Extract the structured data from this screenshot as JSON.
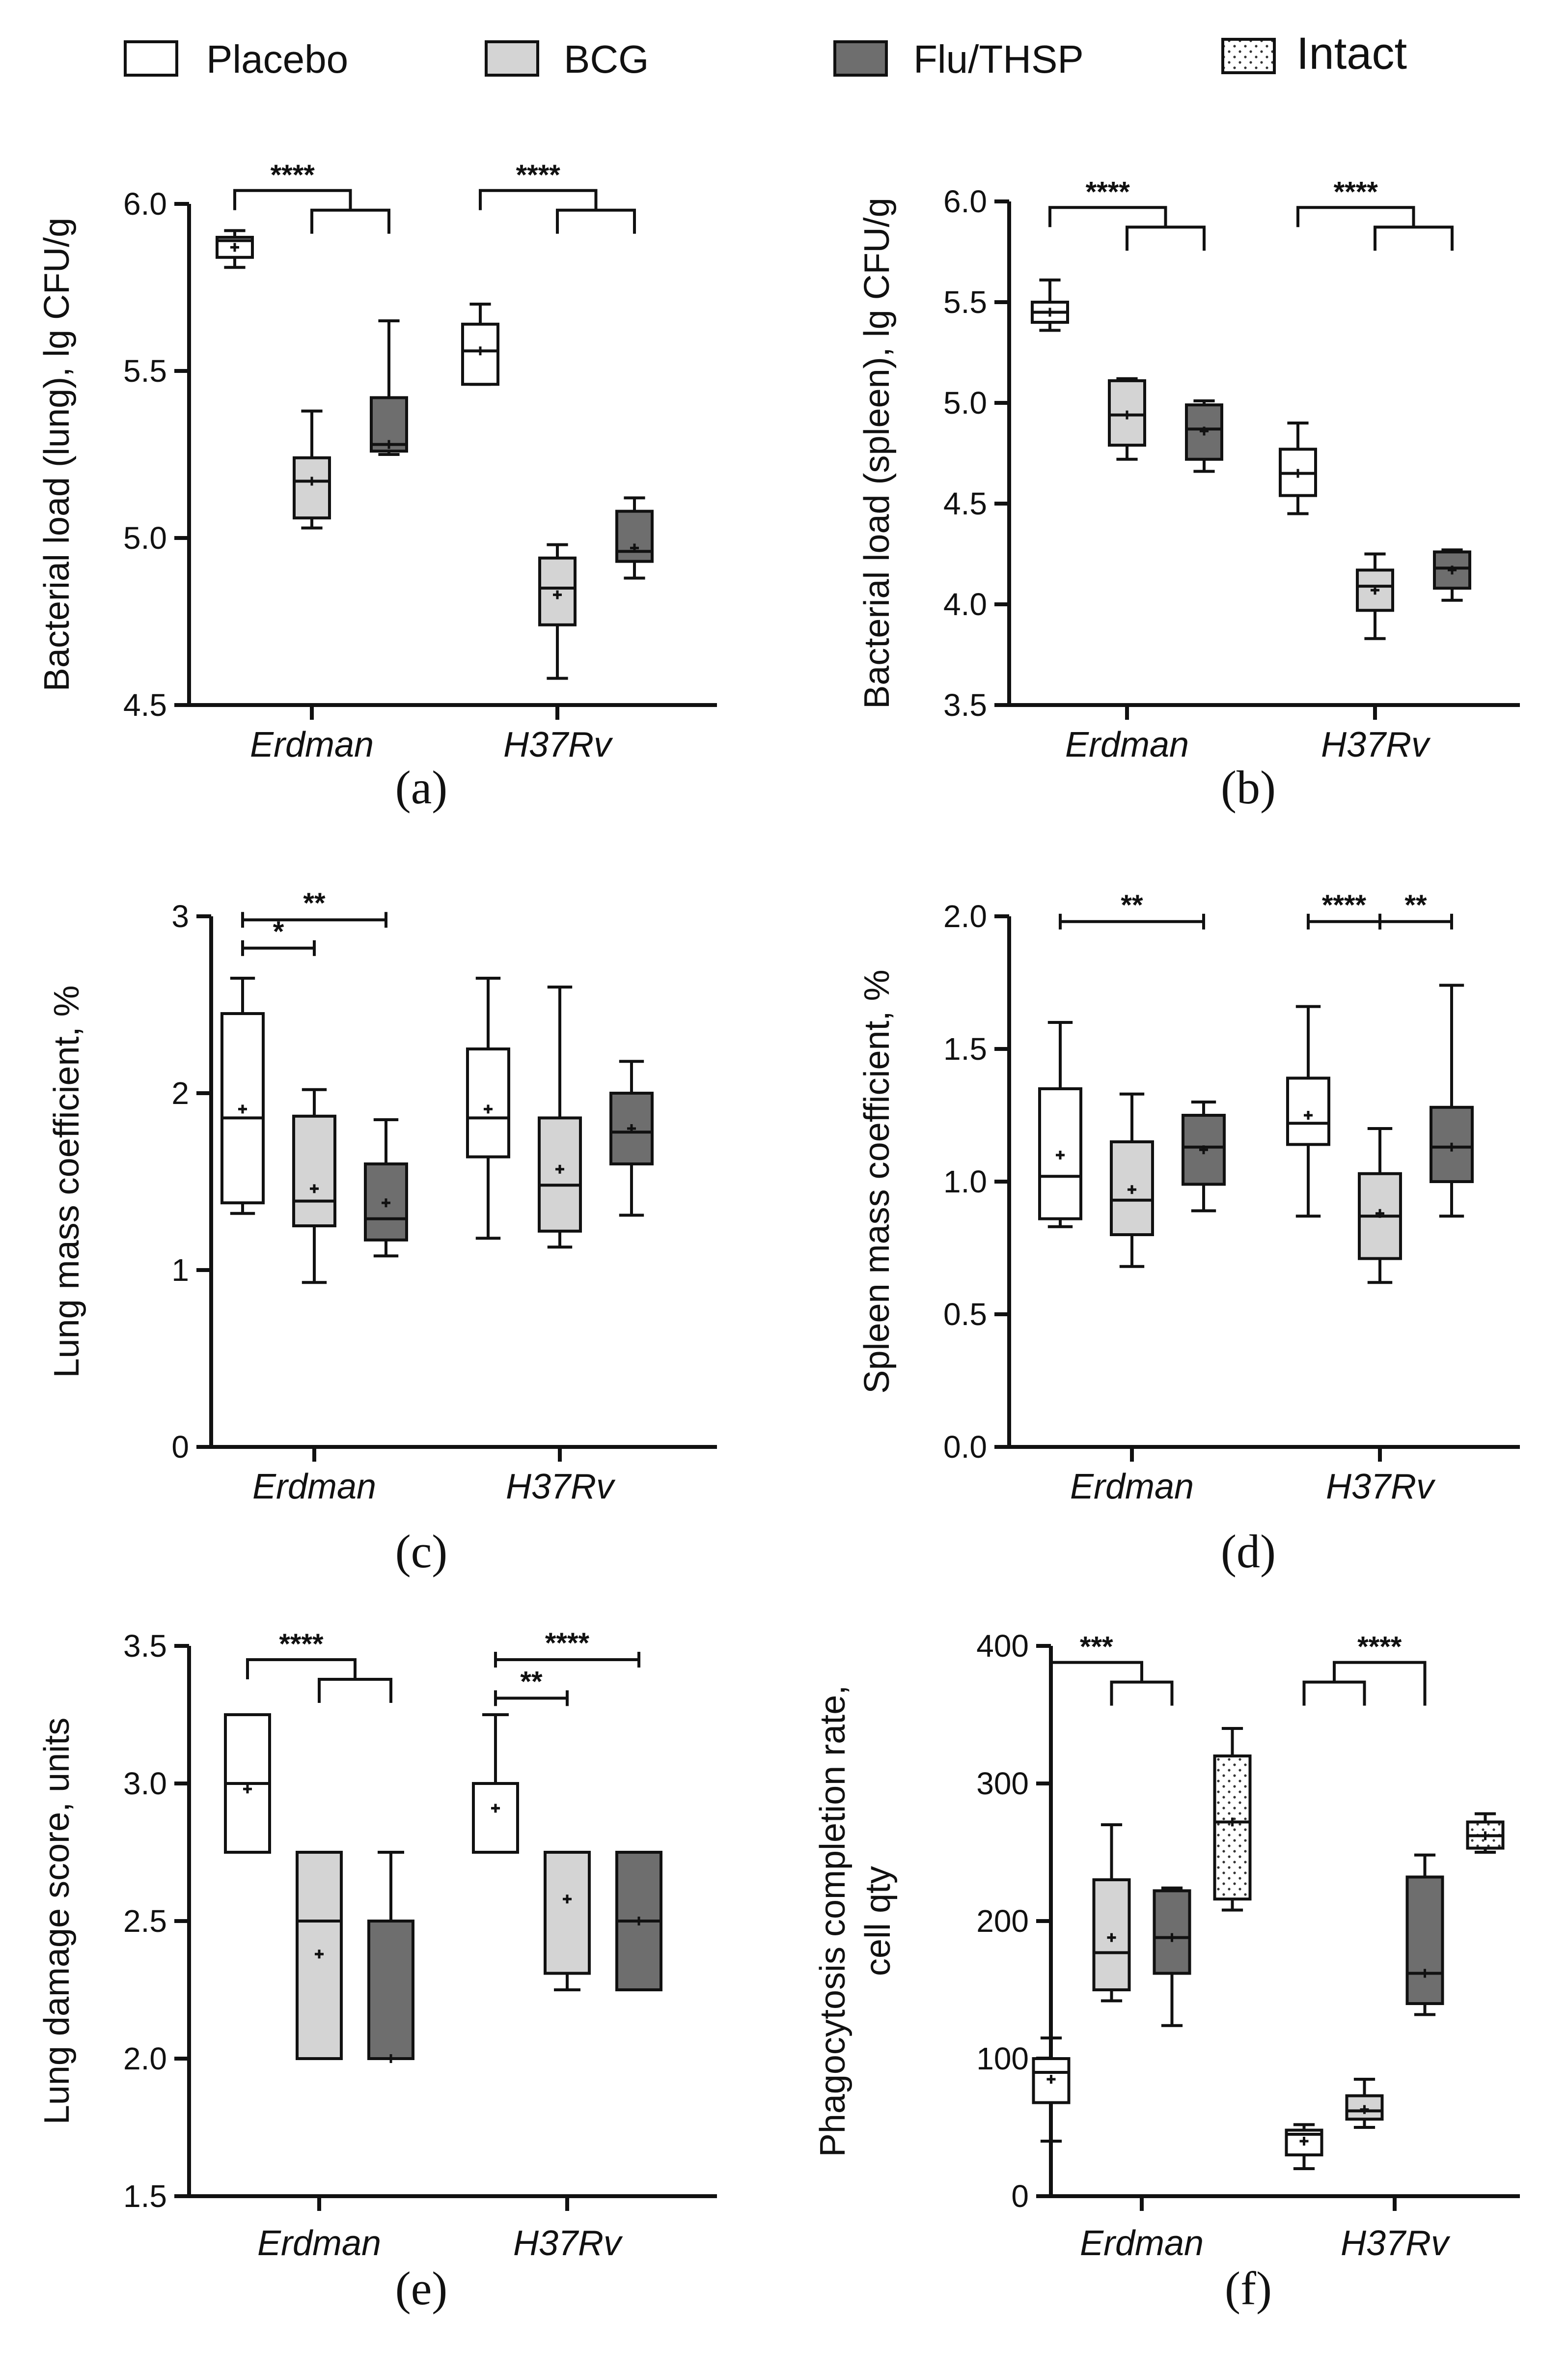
{
  "legend": {
    "items": [
      {
        "label": "Placebo",
        "color": "#ffffff",
        "pattern": "none"
      },
      {
        "label": "BCG",
        "color": "#d4d4d4",
        "pattern": "none"
      },
      {
        "label": "Flu/THSP",
        "color": "#6e6e6e",
        "pattern": "none"
      },
      {
        "label": "Intact",
        "color": "#ffffff",
        "pattern": "dots"
      }
    ]
  },
  "chart_data": [
    {
      "type": "box",
      "panel_label": "(a)",
      "ylabel": "Bacterial load (lung), lg CFU/g",
      "ylim": [
        4.5,
        6.0
      ],
      "yticks": [
        4.5,
        5.0,
        5.5,
        6.0
      ],
      "ytick_labels": [
        "4.5",
        "5.0",
        "5.5",
        "6.0"
      ],
      "categories": [
        "Erdman",
        "H37Rv"
      ],
      "series_order": [
        "Placebo",
        "BCG",
        "Flu/THSP"
      ],
      "boxes": {
        "Erdman": [
          {
            "group": "Placebo",
            "min": 5.81,
            "q1": 5.84,
            "median": 5.89,
            "q3": 5.9,
            "max": 5.92,
            "mean": 5.87
          },
          {
            "group": "BCG",
            "min": 5.03,
            "q1": 5.06,
            "median": 5.17,
            "q3": 5.24,
            "max": 5.38,
            "mean": 5.17
          },
          {
            "group": "Flu/THSP",
            "min": 5.25,
            "q1": 5.26,
            "median": 5.28,
            "q3": 5.42,
            "max": 5.65,
            "mean": 5.28
          }
        ],
        "H37Rv": [
          {
            "group": "Placebo",
            "min": 5.46,
            "q1": 5.46,
            "median": 5.56,
            "q3": 5.64,
            "max": 5.7,
            "mean": 5.56
          },
          {
            "group": "BCG",
            "min": 4.58,
            "q1": 4.74,
            "median": 4.85,
            "q3": 4.94,
            "max": 4.98,
            "mean": 4.83
          },
          {
            "group": "Flu/THSP",
            "min": 4.88,
            "q1": 4.93,
            "median": 4.96,
            "q3": 5.08,
            "max": 5.12,
            "mean": 4.97
          }
        ]
      },
      "significance": [
        {
          "type": "split",
          "category": "Erdman",
          "from": "Placebo",
          "to": [
            "BCG",
            "Flu/THSP"
          ],
          "level": 6.04,
          "label": "****"
        },
        {
          "type": "split",
          "category": "H37Rv",
          "from": "Placebo",
          "to": [
            "BCG",
            "Flu/THSP"
          ],
          "level": 6.04,
          "label": "****"
        }
      ]
    },
    {
      "type": "box",
      "panel_label": "(b)",
      "ylabel": "Bacterial load (spleen), lg CFU/g",
      "ylim": [
        3.5,
        6.0
      ],
      "yticks": [
        3.5,
        4.0,
        4.5,
        5.0,
        5.5,
        6.0
      ],
      "ytick_labels": [
        "3.5",
        "4.0",
        "4.5",
        "5.0",
        "5.5",
        "6.0"
      ],
      "categories": [
        "Erdman",
        "H37Rv"
      ],
      "series_order": [
        "Placebo",
        "BCG",
        "Flu/THSP"
      ],
      "boxes": {
        "Erdman": [
          {
            "group": "Placebo",
            "min": 5.36,
            "q1": 5.4,
            "median": 5.45,
            "q3": 5.5,
            "max": 5.61,
            "mean": 5.45
          },
          {
            "group": "BCG",
            "min": 4.72,
            "q1": 4.79,
            "median": 4.94,
            "q3": 5.11,
            "max": 5.12,
            "mean": 4.94
          },
          {
            "group": "Flu/THSP",
            "min": 4.66,
            "q1": 4.72,
            "median": 4.87,
            "q3": 4.99,
            "max": 5.01,
            "mean": 4.86
          }
        ],
        "H37Rv": [
          {
            "group": "Placebo",
            "min": 4.45,
            "q1": 4.54,
            "median": 4.65,
            "q3": 4.77,
            "max": 4.9,
            "mean": 4.65
          },
          {
            "group": "BCG",
            "min": 3.83,
            "q1": 3.97,
            "median": 4.09,
            "q3": 4.17,
            "max": 4.25,
            "mean": 4.07
          },
          {
            "group": "Flu/THSP",
            "min": 4.02,
            "q1": 4.08,
            "median": 4.18,
            "q3": 4.26,
            "max": 4.27,
            "mean": 4.17
          }
        ]
      },
      "significance": [
        {
          "type": "split",
          "category": "Erdman",
          "from": "Placebo",
          "to": [
            "BCG",
            "Flu/THSP"
          ],
          "level": 5.97,
          "label": "****"
        },
        {
          "type": "split",
          "category": "H37Rv",
          "from": "Placebo",
          "to": [
            "BCG",
            "Flu/THSP"
          ],
          "level": 5.97,
          "label": "****"
        }
      ]
    },
    {
      "type": "box",
      "panel_label": "(c)",
      "ylabel": "Lung mass coefficient, %",
      "ylim": [
        0,
        3
      ],
      "yticks": [
        0,
        1,
        2,
        3
      ],
      "ytick_labels": [
        "0",
        "1",
        "2",
        "3"
      ],
      "categories": [
        "Erdman",
        "H37Rv"
      ],
      "series_order": [
        "Placebo",
        "BCG",
        "Flu/THSP"
      ],
      "boxes": {
        "Erdman": [
          {
            "group": "Placebo",
            "min": 1.32,
            "q1": 1.38,
            "median": 1.86,
            "q3": 2.45,
            "max": 2.65,
            "mean": 1.91
          },
          {
            "group": "BCG",
            "min": 0.93,
            "q1": 1.25,
            "median": 1.39,
            "q3": 1.87,
            "max": 2.02,
            "mean": 1.46
          },
          {
            "group": "Flu/THSP",
            "min": 1.08,
            "q1": 1.17,
            "median": 1.29,
            "q3": 1.6,
            "max": 1.85,
            "mean": 1.38
          }
        ],
        "H37Rv": [
          {
            "group": "Placebo",
            "min": 1.18,
            "q1": 1.64,
            "median": 1.86,
            "q3": 2.25,
            "max": 2.65,
            "mean": 1.91
          },
          {
            "group": "BCG",
            "min": 1.13,
            "q1": 1.22,
            "median": 1.48,
            "q3": 1.86,
            "max": 2.6,
            "mean": 1.57
          },
          {
            "group": "Flu/THSP",
            "min": 1.31,
            "q1": 1.6,
            "median": 1.78,
            "q3": 2.0,
            "max": 2.18,
            "mean": 1.8
          }
        ]
      },
      "significance": [
        {
          "type": "pair",
          "category": "Erdman",
          "from": "Placebo",
          "to": "Flu/THSP",
          "level": 2.98,
          "label": "**"
        },
        {
          "type": "pair",
          "category": "Erdman",
          "from": "Placebo",
          "to": "BCG",
          "level": 2.82,
          "label": "*"
        }
      ]
    },
    {
      "type": "box",
      "panel_label": "(d)",
      "ylabel": "Spleen mass coefficient, %",
      "ylim": [
        0.0,
        2.0
      ],
      "yticks": [
        0.0,
        0.5,
        1.0,
        1.5,
        2.0
      ],
      "ytick_labels": [
        "0.0",
        "0.5",
        "1.0",
        "1.5",
        "2.0"
      ],
      "categories": [
        "Erdman",
        "H37Rv"
      ],
      "series_order": [
        "Placebo",
        "BCG",
        "Flu/THSP"
      ],
      "boxes": {
        "Erdman": [
          {
            "group": "Placebo",
            "min": 0.83,
            "q1": 0.86,
            "median": 1.02,
            "q3": 1.35,
            "max": 1.6,
            "mean": 1.1
          },
          {
            "group": "BCG",
            "min": 0.68,
            "q1": 0.8,
            "median": 0.93,
            "q3": 1.15,
            "max": 1.33,
            "mean": 0.97
          },
          {
            "group": "Flu/THSP",
            "min": 0.89,
            "q1": 0.99,
            "median": 1.13,
            "q3": 1.25,
            "max": 1.3,
            "mean": 1.12
          }
        ],
        "H37Rv": [
          {
            "group": "Placebo",
            "min": 0.87,
            "q1": 1.14,
            "median": 1.22,
            "q3": 1.39,
            "max": 1.66,
            "mean": 1.25
          },
          {
            "group": "BCG",
            "min": 0.62,
            "q1": 0.71,
            "median": 0.87,
            "q3": 1.03,
            "max": 1.2,
            "mean": 0.88
          },
          {
            "group": "Flu/THSP",
            "min": 0.87,
            "q1": 1.0,
            "median": 1.13,
            "q3": 1.28,
            "max": 1.74,
            "mean": 1.13
          }
        ]
      },
      "significance": [
        {
          "type": "pair",
          "category": "Erdman",
          "from": "Placebo",
          "to": "Flu/THSP",
          "level": 1.98,
          "label": "**"
        },
        {
          "type": "pair",
          "category": "H37Rv",
          "from": "Placebo",
          "to": "BCG",
          "level": 1.98,
          "label": "****"
        },
        {
          "type": "pair",
          "category": "H37Rv",
          "from": "BCG",
          "to": "Flu/THSP",
          "level": 1.98,
          "label": "**"
        }
      ]
    },
    {
      "type": "box",
      "panel_label": "(e)",
      "ylabel": "Lung damage score, units",
      "ylim": [
        1.5,
        3.5
      ],
      "yticks": [
        1.5,
        2.0,
        2.5,
        3.0,
        3.5
      ],
      "ytick_labels": [
        "1.5",
        "2.0",
        "2.5",
        "3.0",
        "3.5"
      ],
      "categories": [
        "Erdman",
        "H37Rv"
      ],
      "series_order": [
        "Placebo",
        "BCG",
        "Flu/THSP"
      ],
      "boxes": {
        "Erdman": [
          {
            "group": "Placebo",
            "min": 2.75,
            "q1": 2.75,
            "median": 3.0,
            "q3": 3.25,
            "max": 3.25,
            "mean": 2.98
          },
          {
            "group": "BCG",
            "min": 2.0,
            "q1": 2.0,
            "median": 2.5,
            "q3": 2.75,
            "max": 2.75,
            "mean": 2.38
          },
          {
            "group": "Flu/THSP",
            "min": 2.0,
            "q1": 2.0,
            "median": 2.0,
            "q3": 2.5,
            "max": 2.75,
            "mean": 2.0
          }
        ],
        "H37Rv": [
          {
            "group": "Placebo",
            "min": 2.75,
            "q1": 2.75,
            "median": 3.0,
            "q3": 3.0,
            "max": 3.25,
            "mean": 2.91
          },
          {
            "group": "BCG",
            "min": 2.25,
            "q1": 2.31,
            "median": 2.75,
            "q3": 2.75,
            "max": 2.75,
            "mean": 2.58
          },
          {
            "group": "Flu/THSP",
            "min": 2.25,
            "q1": 2.25,
            "median": 2.5,
            "q3": 2.75,
            "max": 2.75,
            "mean": 2.5
          }
        ]
      },
      "significance": [
        {
          "type": "split",
          "category": "Erdman",
          "from": "Placebo",
          "to": [
            "BCG",
            "Flu/THSP"
          ],
          "level": 3.45,
          "label": "****"
        },
        {
          "type": "pair",
          "category": "H37Rv",
          "from": "Placebo",
          "to": "Flu/THSP",
          "level": 3.45,
          "label": "****"
        },
        {
          "type": "pair",
          "category": "H37Rv",
          "from": "Placebo",
          "to": "BCG",
          "level": 3.31,
          "label": "**"
        }
      ]
    },
    {
      "type": "box",
      "panel_label": "(f)",
      "ylabel": "Phagocytosis completion rate, cell qty",
      "ylabel_lines": [
        "Phagocytosis completion rate,",
        "cell qty"
      ],
      "ylim": [
        0,
        400
      ],
      "yticks": [
        0,
        100,
        200,
        300,
        400
      ],
      "ytick_labels": [
        "0",
        "100",
        "200",
        "300",
        "400"
      ],
      "categories": [
        "Erdman",
        "H37Rv"
      ],
      "series_order": [
        "Placebo",
        "BCG",
        "Flu/THSP",
        "Intact"
      ],
      "boxes": {
        "Erdman": [
          {
            "group": "Placebo",
            "min": 40,
            "q1": 68,
            "median": 90,
            "q3": 100,
            "max": 115,
            "mean": 85
          },
          {
            "group": "BCG",
            "min": 142,
            "q1": 150,
            "median": 177,
            "q3": 230,
            "max": 270,
            "mean": 188
          },
          {
            "group": "Flu/THSP",
            "min": 124,
            "q1": 162,
            "median": 188,
            "q3": 222,
            "max": 224,
            "mean": 188
          },
          {
            "group": "Intact",
            "min": 208,
            "q1": 216,
            "median": 272,
            "q3": 320,
            "max": 340,
            "mean": 272
          }
        ],
        "H37Rv": [
          {
            "group": "Placebo",
            "min": 20,
            "q1": 30,
            "median": 45,
            "q3": 48,
            "max": 52,
            "mean": 40
          },
          {
            "group": "BCG",
            "min": 50,
            "q1": 56,
            "median": 62,
            "q3": 73,
            "max": 85,
            "mean": 63
          },
          {
            "group": "Flu/THSP",
            "min": 132,
            "q1": 140,
            "median": 162,
            "q3": 232,
            "max": 248,
            "mean": 162
          },
          {
            "group": "Intact",
            "min": 250,
            "q1": 253,
            "median": 262,
            "q3": 272,
            "max": 278,
            "mean": 262
          }
        ]
      },
      "significance": [
        {
          "type": "split",
          "category": "Erdman",
          "from": "Placebo",
          "to": [
            "BCG",
            "Flu/THSP"
          ],
          "level": 388,
          "label": "***"
        },
        {
          "type": "split-reverse",
          "category": "H37Rv",
          "from": [
            "Placebo",
            "BCG"
          ],
          "to": "Flu/THSP",
          "level": 388,
          "label": "****"
        }
      ]
    }
  ]
}
